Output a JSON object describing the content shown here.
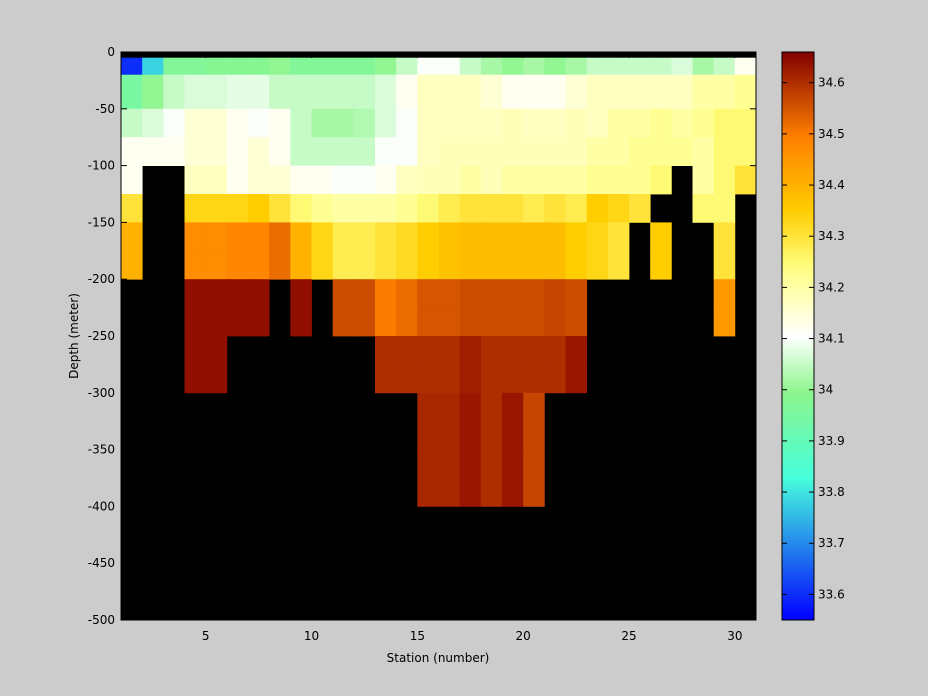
{
  "chart_data": {
    "type": "heatmap",
    "title": "",
    "xlabel": "Station (number)",
    "ylabel": "Depth (meter)",
    "xlim": [
      1,
      31
    ],
    "ylim": [
      -500,
      0
    ],
    "x_ticks": [
      5,
      10,
      15,
      20,
      25,
      30
    ],
    "y_ticks": [
      0,
      -50,
      -100,
      -150,
      -200,
      -250,
      -300,
      -350,
      -400,
      -450,
      -500
    ],
    "colorbar": {
      "range": [
        33.55,
        34.66
      ],
      "ticks": [
        33.6,
        33.7,
        33.8,
        33.9,
        34,
        34.1,
        34.2,
        34.3,
        34.4,
        34.5,
        34.6
      ],
      "colormap": "blue-cyan-green-white-yellow-orange-darkred"
    },
    "no_data_color": "#000000",
    "background_color": "#cccccc",
    "stations": [
      1,
      2,
      3,
      4,
      5,
      6,
      7,
      8,
      9,
      10,
      11,
      12,
      13,
      14,
      15,
      16,
      17,
      18,
      19,
      20,
      21,
      22,
      23,
      24,
      25,
      26,
      27,
      28,
      29,
      30
    ],
    "depth_bins": [
      {
        "top": 0,
        "bottom": -5
      },
      {
        "top": -5,
        "bottom": -20
      },
      {
        "top": -20,
        "bottom": -50
      },
      {
        "top": -50,
        "bottom": -75
      },
      {
        "top": -75,
        "bottom": -100
      },
      {
        "top": -100,
        "bottom": -125
      },
      {
        "top": -125,
        "bottom": -150
      },
      {
        "top": -150,
        "bottom": -175
      },
      {
        "top": -175,
        "bottom": -200
      },
      {
        "top": -200,
        "bottom": -225
      },
      {
        "top": -225,
        "bottom": -250
      },
      {
        "top": -250,
        "bottom": -275
      },
      {
        "top": -275,
        "bottom": -300
      },
      {
        "top": -300,
        "bottom": -350
      },
      {
        "top": -350,
        "bottom": -400
      },
      {
        "top": -400,
        "bottom": -500
      }
    ],
    "values": [
      [
        null,
        null,
        null,
        null,
        null,
        null,
        null,
        null,
        null,
        null,
        null,
        null,
        null,
        null,
        null,
        null,
        null,
        null,
        null,
        null,
        null,
        null,
        null,
        null,
        null,
        null,
        null,
        null,
        null,
        null
      ],
      [
        33.6,
        33.78,
        33.97,
        33.97,
        33.98,
        33.98,
        33.98,
        34.0,
        33.97,
        33.97,
        33.97,
        33.97,
        34.0,
        34.05,
        34.1,
        34.1,
        34.05,
        34.02,
        34.0,
        34.02,
        34.0,
        34.02,
        34.05,
        34.05,
        34.05,
        34.05,
        34.07,
        34.02,
        34.05,
        34.12
      ],
      [
        33.95,
        34.0,
        34.05,
        34.07,
        34.07,
        34.08,
        34.08,
        34.05,
        34.05,
        34.05,
        34.05,
        34.05,
        34.07,
        34.12,
        34.17,
        34.17,
        34.17,
        34.15,
        34.12,
        34.12,
        34.12,
        34.15,
        34.17,
        34.17,
        34.17,
        34.17,
        34.17,
        34.2,
        34.2,
        34.22
      ],
      [
        34.05,
        34.07,
        34.1,
        34.15,
        34.15,
        34.12,
        34.1,
        34.12,
        34.05,
        34.02,
        34.02,
        34.03,
        34.07,
        34.1,
        34.17,
        34.17,
        34.17,
        34.17,
        34.18,
        34.17,
        34.17,
        34.18,
        34.17,
        34.2,
        34.2,
        34.22,
        34.2,
        34.22,
        34.25,
        34.25
      ],
      [
        34.12,
        34.12,
        34.12,
        34.15,
        34.15,
        34.12,
        34.15,
        34.12,
        34.05,
        34.05,
        34.05,
        34.05,
        34.1,
        34.1,
        34.17,
        34.18,
        34.18,
        34.18,
        34.18,
        34.18,
        34.18,
        34.18,
        34.2,
        34.2,
        34.22,
        34.22,
        34.22,
        34.2,
        34.25,
        34.25
      ],
      [
        34.12,
        null,
        null,
        34.17,
        34.17,
        34.12,
        34.15,
        34.15,
        34.12,
        34.12,
        34.1,
        34.1,
        34.12,
        34.17,
        34.18,
        34.18,
        34.2,
        34.18,
        34.2,
        34.2,
        34.2,
        34.2,
        34.22,
        34.22,
        34.22,
        34.25,
        null,
        34.2,
        34.25,
        34.3
      ],
      [
        34.3,
        null,
        null,
        34.33,
        34.33,
        34.33,
        34.35,
        34.3,
        34.25,
        34.22,
        34.2,
        34.2,
        34.2,
        34.22,
        34.25,
        34.28,
        34.3,
        34.3,
        34.3,
        34.28,
        34.3,
        34.28,
        34.35,
        34.33,
        34.3,
        null,
        null,
        34.25,
        34.25,
        null
      ],
      [
        34.4,
        null,
        null,
        34.47,
        34.47,
        34.48,
        34.48,
        34.52,
        34.4,
        34.33,
        34.28,
        34.28,
        34.3,
        34.32,
        34.35,
        34.37,
        34.38,
        34.38,
        34.38,
        34.38,
        34.38,
        34.35,
        34.33,
        34.3,
        null,
        34.35,
        null,
        null,
        34.3,
        null
      ],
      [
        34.4,
        null,
        null,
        34.47,
        34.47,
        34.48,
        34.48,
        34.52,
        34.4,
        34.33,
        34.28,
        34.28,
        34.3,
        34.32,
        34.35,
        34.37,
        34.38,
        34.38,
        34.38,
        34.38,
        34.38,
        34.35,
        34.33,
        34.3,
        null,
        34.35,
        null,
        null,
        34.3,
        null
      ],
      [
        null,
        null,
        null,
        34.64,
        34.64,
        34.64,
        34.64,
        null,
        34.64,
        null,
        34.56,
        34.56,
        34.5,
        34.52,
        34.55,
        34.55,
        34.56,
        34.56,
        34.56,
        34.56,
        34.57,
        34.56,
        null,
        null,
        null,
        null,
        null,
        null,
        34.45,
        null
      ],
      [
        null,
        null,
        null,
        34.64,
        34.64,
        34.64,
        34.64,
        null,
        34.64,
        null,
        34.56,
        34.56,
        34.5,
        34.52,
        34.55,
        34.55,
        34.56,
        34.56,
        34.56,
        34.56,
        34.57,
        34.56,
        null,
        null,
        null,
        null,
        null,
        null,
        34.45,
        null
      ],
      [
        null,
        null,
        null,
        34.64,
        34.64,
        null,
        null,
        null,
        null,
        null,
        null,
        null,
        34.6,
        34.6,
        34.6,
        34.6,
        34.62,
        34.6,
        34.6,
        34.6,
        34.6,
        34.63,
        null,
        null,
        null,
        null,
        null,
        null,
        null,
        null
      ],
      [
        null,
        null,
        null,
        34.64,
        34.64,
        null,
        null,
        null,
        null,
        null,
        null,
        null,
        34.6,
        34.6,
        34.6,
        34.6,
        34.62,
        34.6,
        34.6,
        34.6,
        34.6,
        34.63,
        null,
        null,
        null,
        null,
        null,
        null,
        null,
        null
      ],
      [
        null,
        null,
        null,
        null,
        null,
        null,
        null,
        null,
        null,
        null,
        null,
        null,
        null,
        null,
        34.61,
        34.61,
        34.63,
        34.6,
        34.63,
        34.57,
        null,
        null,
        null,
        null,
        null,
        null,
        null,
        null,
        null,
        null
      ],
      [
        null,
        null,
        null,
        null,
        null,
        null,
        null,
        null,
        null,
        null,
        null,
        null,
        null,
        null,
        34.61,
        34.61,
        34.63,
        34.6,
        34.63,
        34.57,
        null,
        null,
        null,
        null,
        null,
        null,
        null,
        null,
        null,
        null
      ],
      [
        null,
        null,
        null,
        null,
        null,
        null,
        null,
        null,
        null,
        null,
        null,
        null,
        null,
        null,
        null,
        null,
        null,
        null,
        null,
        null,
        null,
        null,
        null,
        null,
        null,
        null,
        null,
        null,
        null,
        null
      ]
    ]
  }
}
